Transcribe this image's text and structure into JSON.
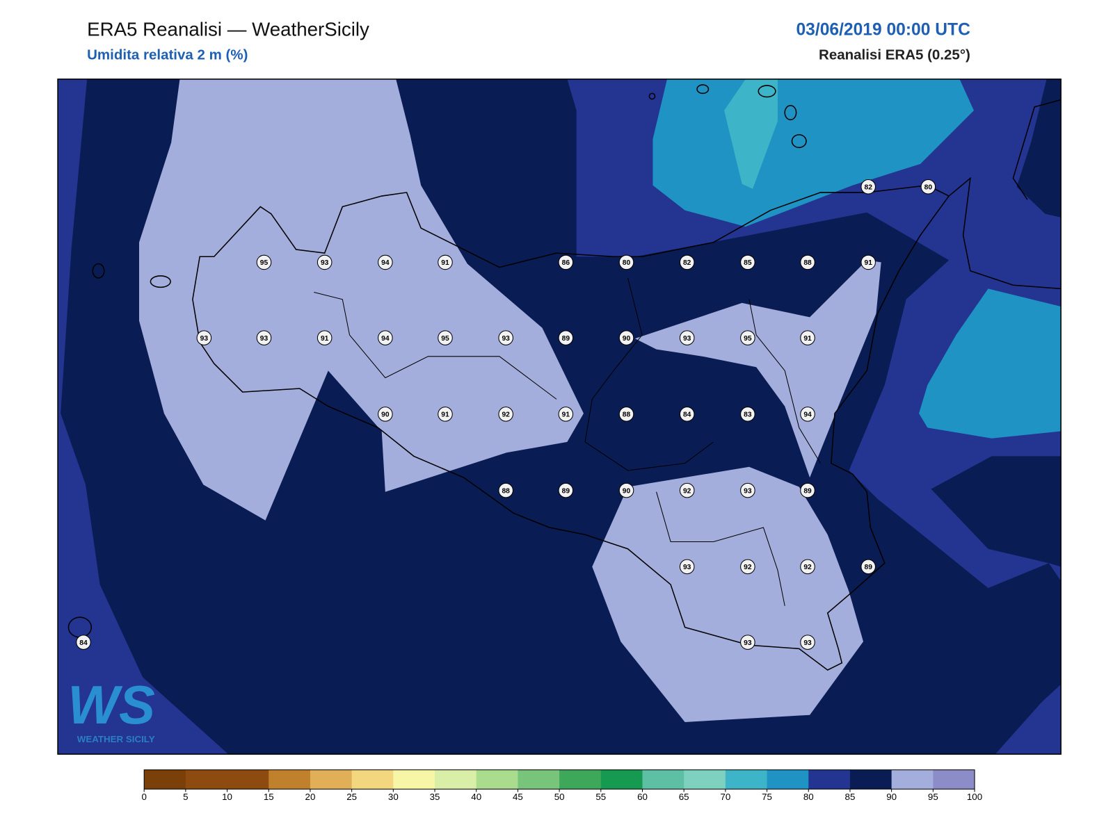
{
  "header": {
    "title": "ERA5 Reanalisi — WeatherSicily",
    "subtitle": "Umidita relativa 2 m (%)",
    "datetime": "03/06/2019 00:00 UTC",
    "source": "Reanalisi ERA5 (0.25°)"
  },
  "stations": [
    82,
    80,
    95,
    93,
    94,
    91,
    86,
    80,
    82,
    85,
    88,
    91,
    93,
    93,
    91,
    94,
    95,
    93,
    89,
    90,
    93,
    95,
    91,
    90,
    91,
    92,
    91,
    88,
    84,
    83,
    94,
    88,
    89,
    90,
    92,
    93,
    89,
    93,
    92,
    92,
    89,
    84,
    93,
    93
  ],
  "colorbar": {
    "ticks": [
      0,
      5,
      10,
      15,
      20,
      25,
      30,
      35,
      40,
      45,
      50,
      55,
      60,
      65,
      70,
      75,
      80,
      85,
      90,
      95,
      100
    ],
    "colors": [
      "#7b4009",
      "#8d4b0f",
      "#8d4b0f",
      "#c1802c",
      "#e0af57",
      "#f2d77e",
      "#f7f5a6",
      "#d9eea6",
      "#a9dc8d",
      "#78c47a",
      "#3ea85a",
      "#169950",
      "#5dbfa4",
      "#7ed0bf",
      "#3db4c8",
      "#1f93c4",
      "#243491",
      "#0a1c54",
      "#a4aedc",
      "#8c8cc8"
    ]
  },
  "logo": {
    "mark": "WS",
    "name": "WEATHER SICILY"
  }
}
